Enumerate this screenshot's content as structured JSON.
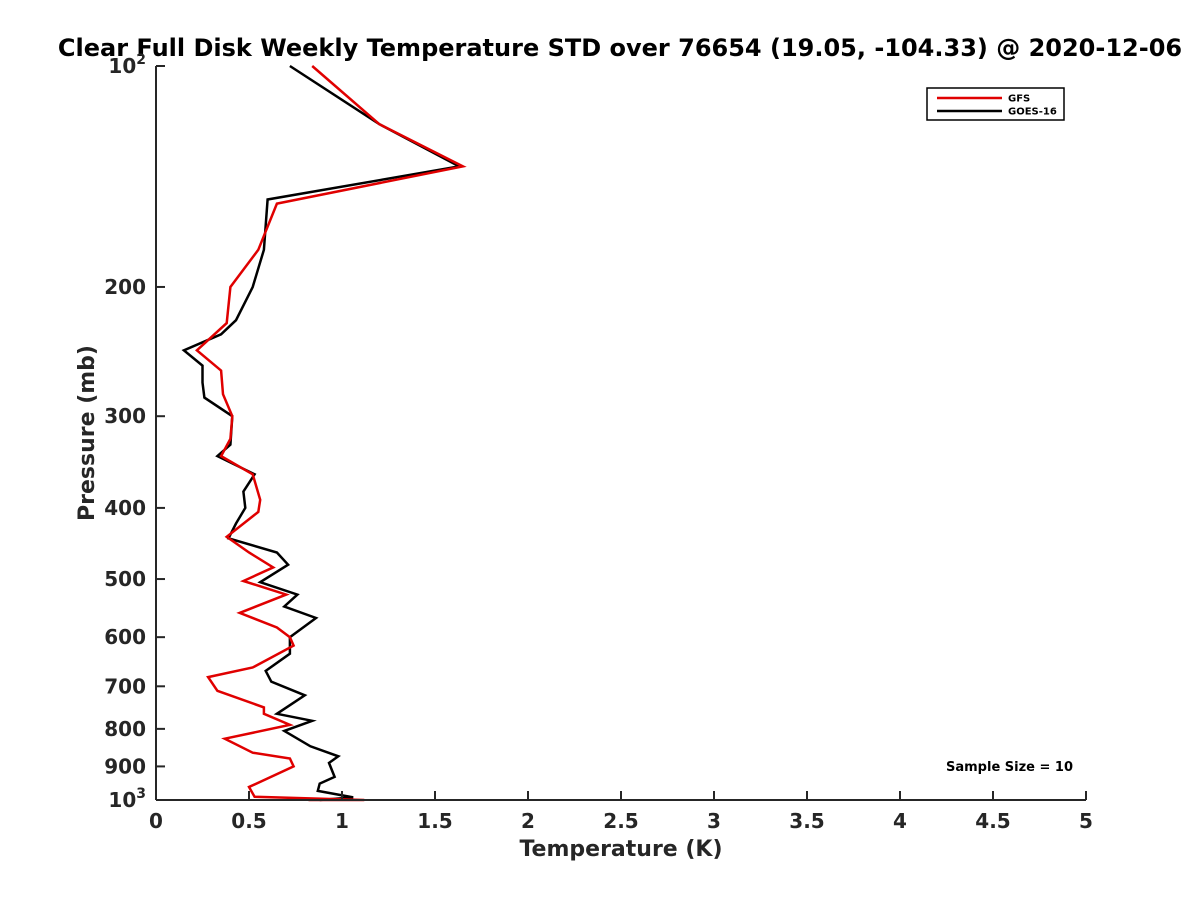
{
  "chart_data": {
    "type": "line",
    "title": "Clear Full Disk Weekly Temperature STD over 76654 (19.05, -104.33) @ 2020-12-06",
    "xlabel": "Temperature (K)",
    "ylabel": "Pressure (mb)",
    "xlim": [
      0,
      5
    ],
    "ylim": [
      100,
      1000
    ],
    "yscale": "log",
    "y_reversed": true,
    "grid": false,
    "legend_position": "top-right",
    "x_ticks": [
      {
        "value": 0,
        "label": "0"
      },
      {
        "value": 0.5,
        "label": "0.5"
      },
      {
        "value": 1,
        "label": "1"
      },
      {
        "value": 1.5,
        "label": "1.5"
      },
      {
        "value": 2,
        "label": "2"
      },
      {
        "value": 2.5,
        "label": "2.5"
      },
      {
        "value": 3,
        "label": "3"
      },
      {
        "value": 3.5,
        "label": "3.5"
      },
      {
        "value": 4,
        "label": "4"
      },
      {
        "value": 4.5,
        "label": "4.5"
      },
      {
        "value": 5,
        "label": "5"
      }
    ],
    "y_ticks": [
      {
        "value": 100,
        "base": "10",
        "exp": "2"
      },
      {
        "value": 200,
        "label": "200"
      },
      {
        "value": 300,
        "label": "300"
      },
      {
        "value": 400,
        "label": "400"
      },
      {
        "value": 500,
        "label": "500"
      },
      {
        "value": 600,
        "label": "600"
      },
      {
        "value": 700,
        "label": "700"
      },
      {
        "value": 800,
        "label": "800"
      },
      {
        "value": 900,
        "label": "900"
      },
      {
        "value": 1000,
        "base": "10",
        "exp": "3"
      }
    ],
    "series": [
      {
        "name": "GFS",
        "color": "#e00000",
        "points": [
          [
            0.84,
            100
          ],
          [
            1.2,
            120
          ],
          [
            1.65,
            137
          ],
          [
            0.65,
            154
          ],
          [
            0.55,
            178
          ],
          [
            0.4,
            200
          ],
          [
            0.38,
            224
          ],
          [
            0.22,
            244
          ],
          [
            0.35,
            260
          ],
          [
            0.36,
            280
          ],
          [
            0.41,
            300
          ],
          [
            0.4,
            322
          ],
          [
            0.35,
            340
          ],
          [
            0.52,
            360
          ],
          [
            0.56,
            390
          ],
          [
            0.55,
            405
          ],
          [
            0.38,
            438
          ],
          [
            0.5,
            460
          ],
          [
            0.63,
            482
          ],
          [
            0.47,
            503
          ],
          [
            0.7,
            525
          ],
          [
            0.45,
            556
          ],
          [
            0.65,
            582
          ],
          [
            0.72,
            600
          ],
          [
            0.74,
            616
          ],
          [
            0.52,
            660
          ],
          [
            0.28,
            680
          ],
          [
            0.33,
            710
          ],
          [
            0.58,
            748
          ],
          [
            0.58,
            763
          ],
          [
            0.72,
            790
          ],
          [
            0.37,
            825
          ],
          [
            0.52,
            862
          ],
          [
            0.72,
            878
          ],
          [
            0.74,
            900
          ],
          [
            0.5,
            960
          ],
          [
            0.53,
            990
          ],
          [
            1.12,
            1000
          ],
          [
            0.82,
            1013
          ]
        ]
      },
      {
        "name": "GOES-16",
        "color": "#000000",
        "points": [
          [
            0.72,
            100
          ],
          [
            1.2,
            120
          ],
          [
            1.63,
            137
          ],
          [
            0.6,
            152
          ],
          [
            0.58,
            178
          ],
          [
            0.52,
            200
          ],
          [
            0.43,
            222
          ],
          [
            0.35,
            232
          ],
          [
            0.15,
            244
          ],
          [
            0.25,
            256
          ],
          [
            0.25,
            270
          ],
          [
            0.26,
            283
          ],
          [
            0.41,
            300
          ],
          [
            0.4,
            328
          ],
          [
            0.33,
            340
          ],
          [
            0.53,
            360
          ],
          [
            0.47,
            380
          ],
          [
            0.48,
            400
          ],
          [
            0.43,
            420
          ],
          [
            0.39,
            440
          ],
          [
            0.65,
            460
          ],
          [
            0.71,
            478
          ],
          [
            0.56,
            505
          ],
          [
            0.76,
            525
          ],
          [
            0.69,
            545
          ],
          [
            0.86,
            565
          ],
          [
            0.72,
            600
          ],
          [
            0.72,
            632
          ],
          [
            0.59,
            667
          ],
          [
            0.62,
            690
          ],
          [
            0.8,
            720
          ],
          [
            0.65,
            763
          ],
          [
            0.84,
            780
          ],
          [
            0.69,
            805
          ],
          [
            0.83,
            845
          ],
          [
            0.98,
            872
          ],
          [
            0.93,
            890
          ],
          [
            0.96,
            930
          ],
          [
            0.88,
            950
          ],
          [
            0.87,
            972
          ],
          [
            1.06,
            992
          ],
          [
            0.88,
            1013
          ]
        ]
      }
    ],
    "annotations": [
      {
        "text": "Sample Size = 10",
        "position": "bottom-right"
      }
    ]
  }
}
